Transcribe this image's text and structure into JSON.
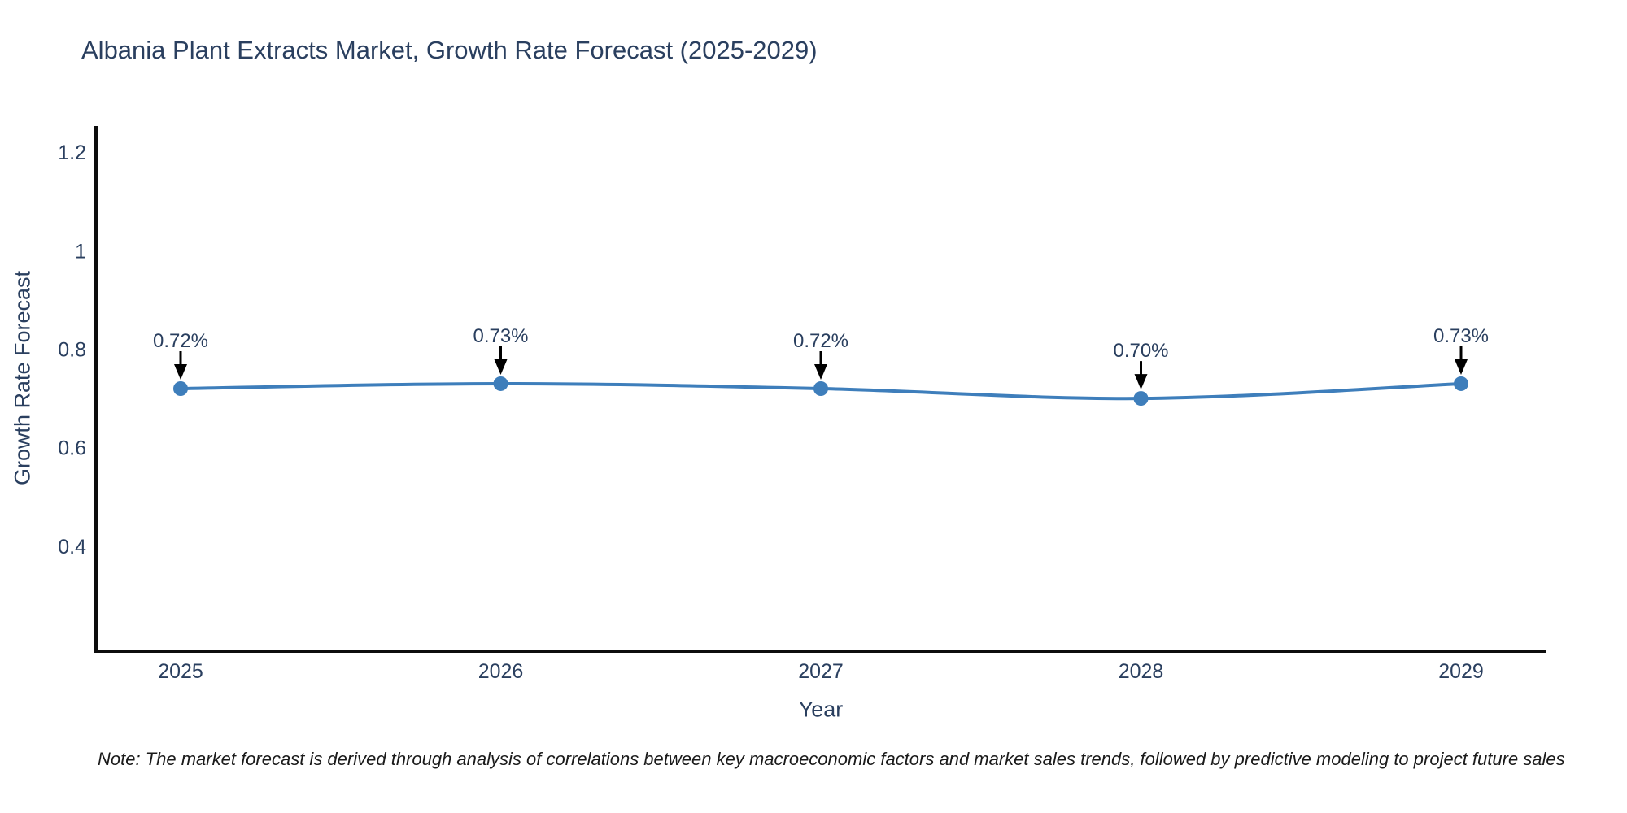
{
  "header": {
    "title": "Albania Plant Extracts Market, Growth Rate Forecast (2025-2029)"
  },
  "footer": {
    "note": "Note: The market forecast is derived through analysis of correlations between key macroeconomic factors and market sales trends, followed by predictive modeling to project future sales"
  },
  "chart_data": {
    "type": "line",
    "title": "Albania Plant Extracts Market, Growth Rate Forecast (2025-2029)",
    "categories": [
      "2025",
      "2026",
      "2027",
      "2028",
      "2029"
    ],
    "values": [
      0.72,
      0.73,
      0.72,
      0.7,
      0.73
    ],
    "point_labels": [
      "0.72%",
      "0.73%",
      "0.72%",
      "0.70%",
      "0.73%"
    ],
    "xlabel": "Year",
    "ylabel": "Growth Rate Forecast",
    "ytick_labels": [
      "1.2",
      "1",
      "0.8",
      "0.6",
      "0.4"
    ],
    "ytick_values": [
      1.2,
      1,
      0.8,
      0.6,
      0.4
    ],
    "ylim": [
      0.187,
      1.253
    ],
    "line_shape": "spline",
    "grid": false,
    "legend_position": "none",
    "colors": {
      "series": "#3e7ebb",
      "marker": "#3e7ebb",
      "annotation_arrow": "#000000",
      "text": "#2a3f5f",
      "axis_line": "#0d0d0d",
      "background": "#ffffff"
    }
  }
}
